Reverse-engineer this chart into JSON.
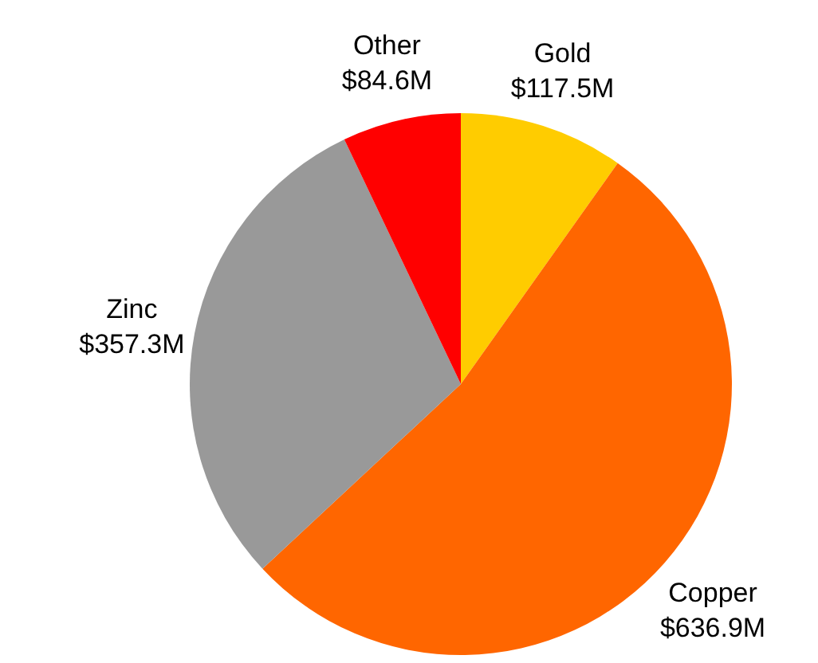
{
  "chart_data": {
    "type": "pie",
    "categories": [
      "Gold",
      "Copper",
      "Zinc",
      "Other"
    ],
    "values": [
      117.5,
      636.9,
      357.3,
      84.6
    ],
    "colors": [
      "#ffcc00",
      "#ff6600",
      "#999999",
      "#ff0000"
    ],
    "value_labels": [
      "$117.5M",
      "$636.9M",
      "$357.3M",
      "$84.6M"
    ],
    "legend": false
  }
}
